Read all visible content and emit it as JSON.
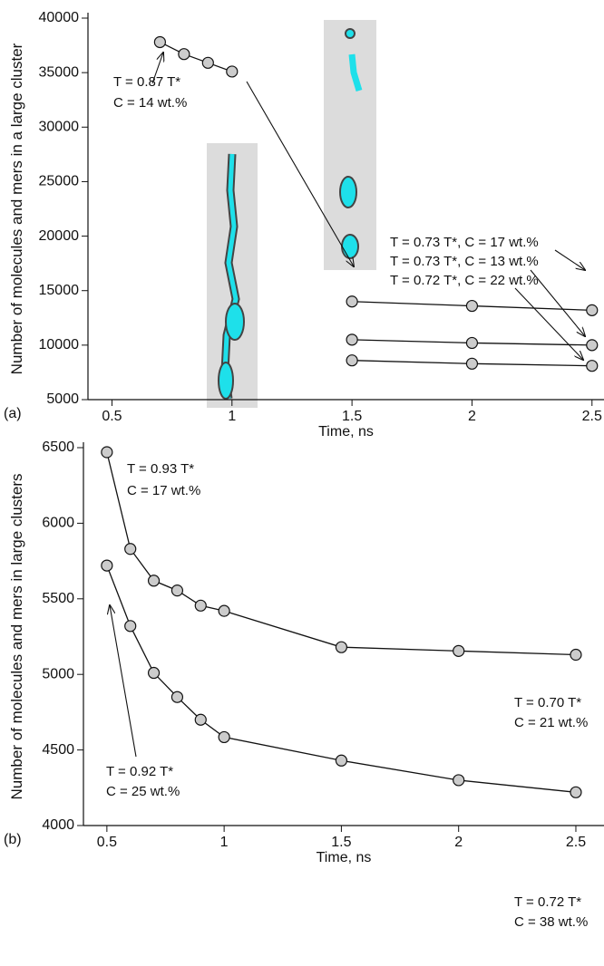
{
  "chart_data": [
    {
      "type": "line",
      "panel": "(a)",
      "x_label": "Time, ns",
      "y_label": "Number of molecules and mers in a large cluster",
      "xlim": [
        0.4,
        2.55
      ],
      "ylim": [
        5000,
        40000
      ],
      "xticks": [
        0.5,
        1,
        1.5,
        2,
        2.5
      ],
      "yticks": [
        5000,
        10000,
        15000,
        20000,
        25000,
        30000,
        35000,
        40000
      ],
      "series": [
        {
          "color": "#cccccc",
          "x": [
            0.7,
            0.8,
            0.9,
            1.0
          ],
          "values": [
            37800,
            36700,
            35900,
            35100
          ]
        },
        {
          "color": "#cccccc",
          "x": [
            1.5,
            2,
            2.5
          ],
          "values": [
            14000,
            13600,
            13200
          ]
        },
        {
          "color": "#cccccc",
          "x": [
            1.5,
            2,
            2.5
          ],
          "values": [
            10500,
            10200,
            10000
          ]
        },
        {
          "color": "#cccccc",
          "x": [
            1.5,
            2,
            2.5
          ],
          "values": [
            8600,
            8300,
            8100
          ]
        }
      ],
      "annotations": [
        "T = 0.87 T*",
        "C = 14 wt.%",
        "T = 0.73 T*, C = 17 wt.%",
        "T = 0.73 T*, C = 13 wt.%",
        "T = 0.72 T*, C = 22 wt.%"
      ]
    },
    {
      "type": "line",
      "panel": "(b)",
      "x_label": "Time, ns",
      "y_label": "Number of molecules and mers in large clusters",
      "xlim": [
        0.4,
        2.62
      ],
      "ylim": [
        4000,
        6500
      ],
      "xticks": [
        0.5,
        1,
        1.5,
        2,
        2.5
      ],
      "yticks": [
        4000,
        4500,
        5000,
        5500,
        6000,
        6500
      ],
      "series": [
        {
          "color": "#cccccc",
          "x": [
            0.5,
            0.6,
            0.7,
            0.8,
            0.9,
            1,
            1.5,
            2,
            2.5
          ],
          "values": [
            6470,
            5830,
            5620,
            5555,
            5455,
            5420,
            5180,
            5155,
            5130
          ]
        },
        {
          "color": "#cccccc",
          "x": [
            0.5,
            0.6,
            0.7,
            0.8,
            0.9,
            1,
            1.5,
            2,
            2.5
          ],
          "values": [
            5720,
            5320,
            5010,
            4850,
            4700,
            4585,
            4430,
            4300,
            4220
          ]
        }
      ],
      "annotations": [
        "T = 0.93 T*",
        "C = 17 wt.%",
        "T = 0.70 T*",
        "C = 21 wt.%",
        "T = 0.92 T*",
        "C = 25 wt.%",
        "T = 0.72 T*",
        "C = 38 wt.%"
      ]
    }
  ]
}
